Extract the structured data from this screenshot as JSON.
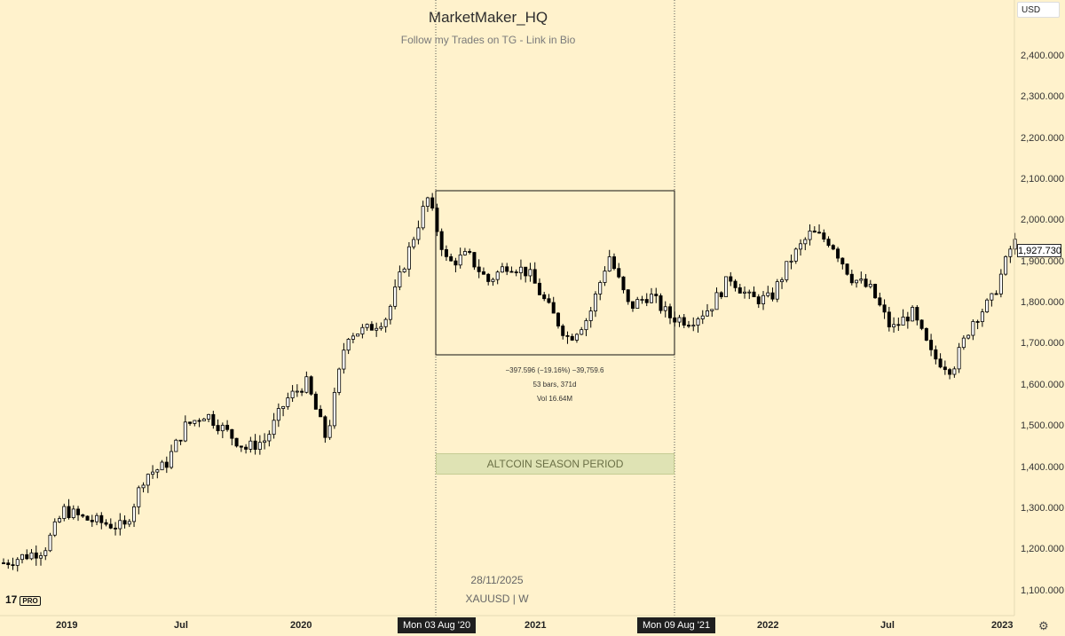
{
  "header": {
    "title": "MarketMaker_HQ",
    "subtitle": "Follow my Trades on TG - Link in Bio"
  },
  "currency_selector": "USD",
  "price_axis": {
    "labels": [
      "2,400.000",
      "2,300.000",
      "2,200.000",
      "2,100.000",
      "2,000.000",
      "1,900.000",
      "1,800.000",
      "1,700.000",
      "1,600.000",
      "1,500.000",
      "1,400.000",
      "1,300.000",
      "1,200.000",
      "1,100.000"
    ],
    "current_price": "1,927.730"
  },
  "time_axis": {
    "labels": [
      "2019",
      "Jul",
      "2020",
      "2021",
      "2022",
      "Jul",
      "2023"
    ],
    "highlight_start": "Mon 03 Aug '20",
    "highlight_end": "Mon 09 Aug '21"
  },
  "measure": {
    "line1": "−397.596 (−19.16%) −39,759.6",
    "line2": "53 bars, 371d",
    "line3": "Vol 16.64M"
  },
  "annotation": "ALTCOIN SEASON PERIOD",
  "footer": {
    "date": "28/11/2025",
    "symbol": "XAUUSD | W"
  },
  "branding": {
    "logo": "17",
    "badge": "PRO"
  },
  "colors": {
    "background": "#fff2cc",
    "candle_up": "#ffffff",
    "candle_down": "#000000",
    "annotation_fill": "#dfe3b4"
  },
  "chart_data": {
    "type": "candlestick",
    "symbol": "XAUUSD",
    "interval": "W",
    "ylim": [
      1080,
      2480
    ],
    "xlim": [
      "2018-11",
      "2023-01"
    ],
    "anchors": [
      [
        "2018-11",
        1200
      ],
      [
        "2019-01",
        1230
      ],
      [
        "2019-02",
        1320
      ],
      [
        "2019-03",
        1300
      ],
      [
        "2019-05",
        1280
      ],
      [
        "2019-06",
        1400
      ],
      [
        "2019-07",
        1420
      ],
      [
        "2019-08",
        1510
      ],
      [
        "2019-09",
        1540
      ],
      [
        "2019-10",
        1500
      ],
      [
        "2019-11",
        1460
      ],
      [
        "2019-12",
        1480
      ],
      [
        "2020-01",
        1570
      ],
      [
        "2020-02",
        1610
      ],
      [
        "2020-03",
        1480
      ],
      [
        "2020-04",
        1720
      ],
      [
        "2020-05",
        1730
      ],
      [
        "2020-06",
        1760
      ],
      [
        "2020-07",
        1900
      ],
      [
        "2020-08",
        2030
      ],
      [
        "2020-09",
        1880
      ],
      [
        "2020-10",
        1900
      ],
      [
        "2020-11",
        1840
      ],
      [
        "2020-12",
        1880
      ],
      [
        "2021-01",
        1860
      ],
      [
        "2021-02",
        1780
      ],
      [
        "2021-03",
        1710
      ],
      [
        "2021-04",
        1760
      ],
      [
        "2021-05",
        1900
      ],
      [
        "2021-06",
        1780
      ],
      [
        "2021-07",
        1810
      ],
      [
        "2021-08",
        1760
      ],
      [
        "2021-09",
        1750
      ],
      [
        "2021-10",
        1780
      ],
      [
        "2021-11",
        1850
      ],
      [
        "2021-12",
        1800
      ],
      [
        "2022-01",
        1800
      ],
      [
        "2022-02",
        1890
      ],
      [
        "2022-03",
        1950
      ],
      [
        "2022-04",
        1930
      ],
      [
        "2022-05",
        1850
      ],
      [
        "2022-06",
        1820
      ],
      [
        "2022-07",
        1730
      ],
      [
        "2022-08",
        1770
      ],
      [
        "2022-09",
        1670
      ],
      [
        "2022-10",
        1640
      ],
      [
        "2022-11",
        1750
      ],
      [
        "2022-12",
        1800
      ],
      [
        "2023-01",
        1928
      ]
    ]
  }
}
